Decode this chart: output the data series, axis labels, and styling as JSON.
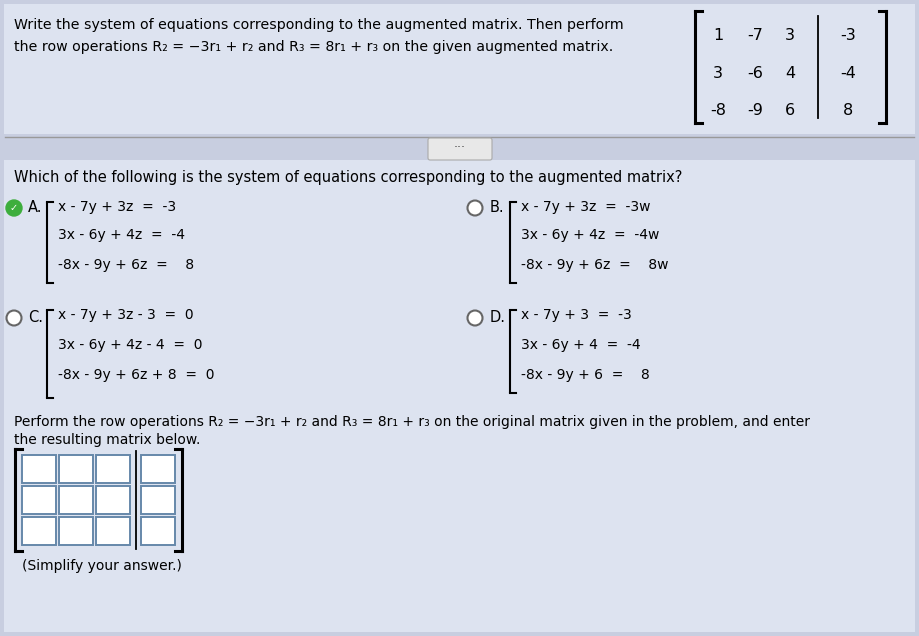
{
  "bg_color": "#c8cee0",
  "top_card_color": "#dde3f0",
  "main_card_color": "#dde3f0",
  "text_color": "#000000",
  "title_line1": "Write the system of equations corresponding to the augmented matrix. Then perform",
  "title_line2": "the row operations R₂ = −3r₁ + r₂ and R₃ = 8r₁ + r₃ on the given augmented matrix.",
  "matrix_entries": [
    [
      "1",
      "-7",
      "3",
      "-3"
    ],
    [
      "3",
      "-6",
      "4",
      "-4"
    ],
    [
      "-8",
      "-9",
      "6",
      "8"
    ]
  ],
  "question_text": "Which of the following is the system of equations corresponding to the augmented matrix?",
  "option_A": [
    "x - 7y + 3z  =  -3",
    "3x - 6y + 4z  =  -4",
    "-8x - 9y + 6z  =    8"
  ],
  "option_B": [
    "x - 7y + 3z  =  -3w",
    "3x - 6y + 4z  =  -4w",
    "-8x - 9y + 6z  =    8w"
  ],
  "option_C": [
    "x - 7y + 3z - 3  =  0",
    "3x - 6y + 4z - 4  =  0",
    "-8x - 9y + 6z + 8  =  0"
  ],
  "option_D": [
    "x - 7y + 3  =  -3",
    "3x - 6y + 4  =  -4",
    "-8x - 9y + 6  =    8"
  ],
  "bottom_text1": "Perform the row operations R₂ = −3r₁ + r₂ and R₃ = 8r₁ + r₃ on the original matrix given in the problem, and enter",
  "bottom_text2": "the resulting matrix below.",
  "simplify_text": "(Simplify your answer.)"
}
